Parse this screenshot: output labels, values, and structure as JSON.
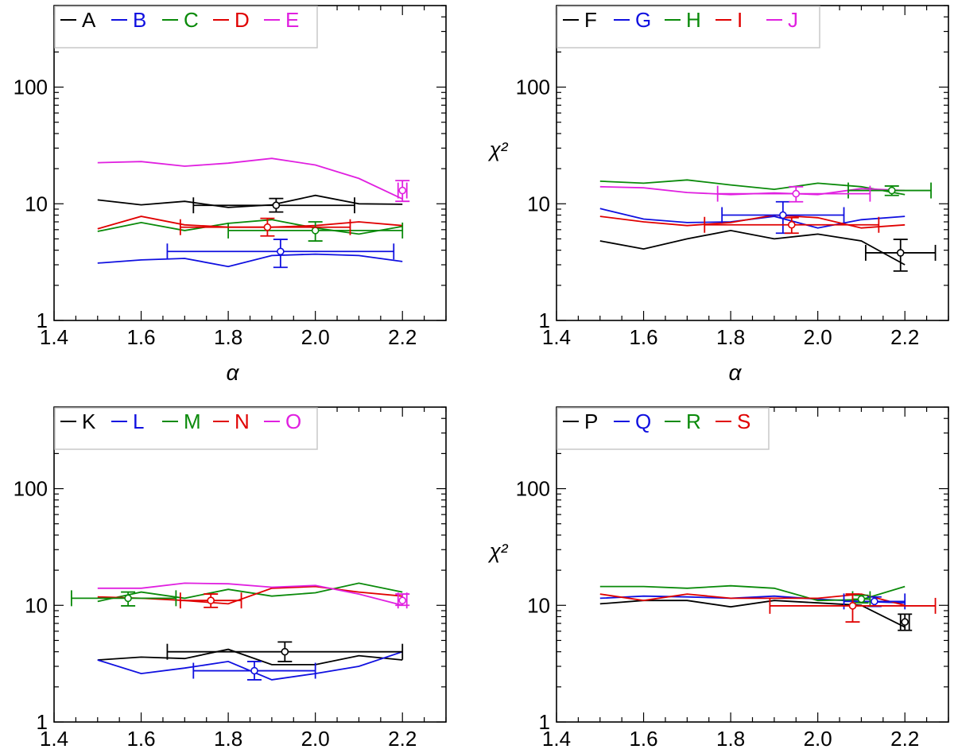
{
  "colors": {
    "black": "#000000",
    "blue": "#1010e0",
    "green": "#0a8a0a",
    "red": "#e00000",
    "magenta": "#e020e0"
  },
  "chart_data": [
    {
      "type": "line",
      "xlabel": "α",
      "ylabel": "",
      "xlim": [
        1.4,
        2.3
      ],
      "ylim": [
        1,
        500
      ],
      "yscale": "log",
      "xticks": [
        "1.4",
        "1.6",
        "1.8",
        "2.0",
        "2.2"
      ],
      "yticks": [
        "1",
        "10",
        "100"
      ],
      "legend_position": "top-left",
      "series": [
        {
          "name": "A",
          "color": "black",
          "x": [
            1.5,
            1.6,
            1.7,
            1.8,
            1.9,
            2.0,
            2.1,
            2.2
          ],
          "y": [
            10.8,
            9.8,
            10.5,
            9.3,
            9.8,
            11.8,
            10.0,
            9.9
          ],
          "point": {
            "x": 1.91,
            "y": 9.7,
            "xerr": [
              1.72,
              2.09
            ],
            "yerr": [
              8.5,
              11.1
            ]
          }
        },
        {
          "name": "B",
          "color": "blue",
          "x": [
            1.5,
            1.6,
            1.7,
            1.8,
            1.9,
            2.0,
            2.1,
            2.2
          ],
          "y": [
            3.1,
            3.3,
            3.4,
            2.9,
            3.6,
            3.7,
            3.6,
            3.2
          ],
          "point": {
            "x": 1.92,
            "y": 3.9,
            "xerr": [
              1.66,
              2.18
            ],
            "yerr": [
              2.85,
              4.95
            ]
          }
        },
        {
          "name": "C",
          "color": "green",
          "x": [
            1.5,
            1.6,
            1.7,
            1.8,
            1.9,
            2.0,
            2.1,
            2.2
          ],
          "y": [
            5.8,
            6.9,
            5.9,
            6.8,
            7.3,
            6.2,
            5.5,
            6.4
          ],
          "point": {
            "x": 2.0,
            "y": 5.9,
            "xerr": [
              1.8,
              2.2
            ],
            "yerr": [
              4.8,
              7.0
            ]
          }
        },
        {
          "name": "D",
          "color": "red",
          "x": [
            1.5,
            1.6,
            1.7,
            1.8,
            1.9,
            2.0,
            2.1,
            2.2
          ],
          "y": [
            6.1,
            7.8,
            6.6,
            6.3,
            6.3,
            6.5,
            7.0,
            6.5
          ],
          "point": {
            "x": 1.89,
            "y": 6.3,
            "xerr": [
              1.69,
              2.08
            ],
            "yerr": [
              5.3,
              7.5
            ]
          }
        },
        {
          "name": "E",
          "color": "magenta",
          "x": [
            1.5,
            1.6,
            1.7,
            1.8,
            1.9,
            2.0,
            2.1,
            2.2
          ],
          "y": [
            22.5,
            23.0,
            21.0,
            22.3,
            24.5,
            21.5,
            16.5,
            11.0
          ],
          "point": {
            "x": 2.2,
            "y": 13.0,
            "xerr": [
              2.19,
              2.21
            ],
            "yerr": [
              10.5,
              15.8
            ]
          }
        }
      ]
    },
    {
      "type": "line",
      "xlabel": "α",
      "ylabel": "χ²",
      "xlim": [
        1.4,
        2.3
      ],
      "ylim": [
        1,
        500
      ],
      "yscale": "log",
      "xticks": [
        "1.4",
        "1.6",
        "1.8",
        "2.0",
        "2.2"
      ],
      "yticks": [
        "1",
        "10",
        "100"
      ],
      "legend_position": "top-left",
      "series": [
        {
          "name": "F",
          "color": "black",
          "x": [
            1.5,
            1.6,
            1.7,
            1.8,
            1.9,
            2.0,
            2.1,
            2.2
          ],
          "y": [
            4.8,
            4.1,
            5.0,
            5.9,
            5.0,
            5.5,
            4.8,
            3.0
          ],
          "point": {
            "x": 2.19,
            "y": 3.8,
            "xerr": [
              2.11,
              2.27
            ],
            "yerr": [
              2.65,
              4.95
            ]
          }
        },
        {
          "name": "G",
          "color": "blue",
          "x": [
            1.5,
            1.6,
            1.7,
            1.8,
            1.9,
            2.0,
            2.1,
            2.2
          ],
          "y": [
            9.1,
            7.4,
            6.9,
            7.0,
            7.8,
            6.2,
            7.3,
            7.8
          ],
          "point": {
            "x": 1.92,
            "y": 8.0,
            "xerr": [
              1.78,
              2.06
            ],
            "yerr": [
              5.6,
              10.4
            ]
          }
        },
        {
          "name": "H",
          "color": "green",
          "x": [
            1.5,
            1.6,
            1.7,
            1.8,
            1.9,
            2.0,
            2.1,
            2.2
          ],
          "y": [
            15.6,
            15.0,
            16.0,
            14.5,
            13.3,
            15.0,
            14.0,
            12.0
          ],
          "point": {
            "x": 2.17,
            "y": 13.0,
            "xerr": [
              2.07,
              2.26
            ],
            "yerr": [
              11.8,
              14.2
            ]
          }
        },
        {
          "name": "I",
          "color": "red",
          "x": [
            1.5,
            1.6,
            1.7,
            1.8,
            1.9,
            2.0,
            2.1,
            2.2
          ],
          "y": [
            7.8,
            7.0,
            6.5,
            6.9,
            8.0,
            7.6,
            6.2,
            6.6
          ],
          "point": {
            "x": 1.94,
            "y": 6.6,
            "xerr": [
              1.74,
              2.14
            ],
            "yerr": [
              5.6,
              7.6
            ]
          }
        },
        {
          "name": "J",
          "color": "magenta",
          "x": [
            1.5,
            1.6,
            1.7,
            1.8,
            1.9,
            2.0,
            2.1,
            2.2
          ],
          "y": [
            14.0,
            13.7,
            12.5,
            12.0,
            12.4,
            12.0,
            13.5,
            13.0
          ],
          "point": {
            "x": 1.95,
            "y": 12.2,
            "xerr": [
              1.77,
              2.12
            ],
            "yerr": [
              10.4,
              14.0
            ]
          }
        }
      ]
    },
    {
      "type": "line",
      "xlabel": "",
      "ylabel": "",
      "xlim": [
        1.4,
        2.3
      ],
      "ylim": [
        1,
        500
      ],
      "yscale": "log",
      "xticks": [
        "1.4",
        "1.6",
        "1.8",
        "2.0",
        "2.2"
      ],
      "yticks": [
        "1",
        "10",
        "100"
      ],
      "legend_position": "top-left",
      "series": [
        {
          "name": "K",
          "color": "black",
          "x": [
            1.5,
            1.6,
            1.7,
            1.8,
            1.9,
            2.0,
            2.1,
            2.2
          ],
          "y": [
            3.4,
            3.6,
            3.5,
            4.2,
            3.1,
            3.1,
            3.7,
            3.4
          ],
          "point": {
            "x": 1.93,
            "y": 4.0,
            "xerr": [
              1.66,
              2.2
            ],
            "yerr": [
              3.3,
              4.85
            ]
          }
        },
        {
          "name": "L",
          "color": "blue",
          "x": [
            1.5,
            1.6,
            1.7,
            1.8,
            1.9,
            2.0,
            2.1,
            2.2
          ],
          "y": [
            3.4,
            2.6,
            2.9,
            3.3,
            2.3,
            2.6,
            3.0,
            4.0
          ],
          "point": {
            "x": 1.86,
            "y": 2.75,
            "xerr": [
              1.72,
              2.0
            ],
            "yerr": [
              2.3,
              3.3
            ]
          }
        },
        {
          "name": "M",
          "color": "green",
          "x": [
            1.5,
            1.6,
            1.7,
            1.8,
            1.9,
            2.0,
            2.1,
            2.2
          ],
          "y": [
            10.8,
            13.0,
            11.5,
            13.7,
            12.0,
            12.8,
            15.5,
            13.0
          ],
          "point": {
            "x": 1.57,
            "y": 11.5,
            "xerr": [
              1.44,
              1.68
            ],
            "yerr": [
              9.9,
              13.0
            ]
          }
        },
        {
          "name": "N",
          "color": "red",
          "x": [
            1.5,
            1.6,
            1.7,
            1.8,
            1.9,
            2.0,
            2.1,
            2.2
          ],
          "y": [
            11.8,
            11.5,
            11.0,
            10.3,
            14.0,
            14.5,
            13.0,
            12.0
          ],
          "point": {
            "x": 1.76,
            "y": 11.0,
            "xerr": [
              1.69,
              1.83
            ],
            "yerr": [
              9.6,
              12.5
            ]
          }
        },
        {
          "name": "O",
          "color": "magenta",
          "x": [
            1.5,
            1.6,
            1.7,
            1.8,
            1.9,
            2.0,
            2.1,
            2.2
          ],
          "y": [
            14.0,
            14.0,
            15.5,
            15.3,
            14.3,
            14.8,
            12.5,
            10.0
          ],
          "point": {
            "x": 2.2,
            "y": 11.0,
            "xerr": [
              2.19,
              2.21
            ],
            "yerr": [
              10.0,
              12.5
            ]
          }
        }
      ]
    },
    {
      "type": "line",
      "xlabel": "",
      "ylabel": "χ²",
      "xlim": [
        1.4,
        2.3
      ],
      "ylim": [
        1,
        500
      ],
      "yscale": "log",
      "xticks": [
        "1.4",
        "1.6",
        "1.8",
        "2.0",
        "2.2"
      ],
      "yticks": [
        "1",
        "10",
        "100"
      ],
      "legend_position": "top-left",
      "series": [
        {
          "name": "P",
          "color": "black",
          "x": [
            1.5,
            1.6,
            1.7,
            1.8,
            1.9,
            2.0,
            2.1,
            2.2
          ],
          "y": [
            10.3,
            11.0,
            11.0,
            9.7,
            11.0,
            10.5,
            10.0,
            6.5
          ],
          "point": {
            "x": 2.2,
            "y": 7.2,
            "xerr": [
              2.19,
              2.21
            ],
            "yerr": [
              6.1,
              8.4
            ]
          }
        },
        {
          "name": "Q",
          "color": "blue",
          "x": [
            1.5,
            1.6,
            1.7,
            1.8,
            1.9,
            2.0,
            2.1,
            2.2
          ],
          "y": [
            11.5,
            12.0,
            11.8,
            11.5,
            12.0,
            11.3,
            10.8,
            10.5
          ],
          "point": {
            "x": 2.13,
            "y": 10.8,
            "xerr": [
              2.06,
              2.2
            ],
            "yerr": [
              9.8,
              11.8
            ]
          }
        },
        {
          "name": "R",
          "color": "green",
          "x": [
            1.5,
            1.6,
            1.7,
            1.8,
            1.9,
            2.0,
            2.1,
            2.2
          ],
          "y": [
            14.5,
            14.5,
            14.0,
            14.7,
            14.0,
            11.0,
            11.2,
            14.5
          ],
          "point": {
            "x": 2.1,
            "y": 11.3,
            "xerr": [
              2.08,
              2.12
            ],
            "yerr": [
              10.5,
              12.2
            ]
          }
        },
        {
          "name": "S",
          "color": "red",
          "x": [
            1.5,
            1.6,
            1.7,
            1.8,
            1.9,
            2.0,
            2.1,
            2.2
          ],
          "y": [
            12.5,
            11.0,
            12.5,
            11.5,
            11.5,
            11.5,
            12.5,
            10.0
          ],
          "point": {
            "x": 2.08,
            "y": 9.9,
            "xerr": [
              1.89,
              2.27
            ],
            "yerr": [
              7.2,
              12.5
            ]
          }
        }
      ]
    }
  ]
}
